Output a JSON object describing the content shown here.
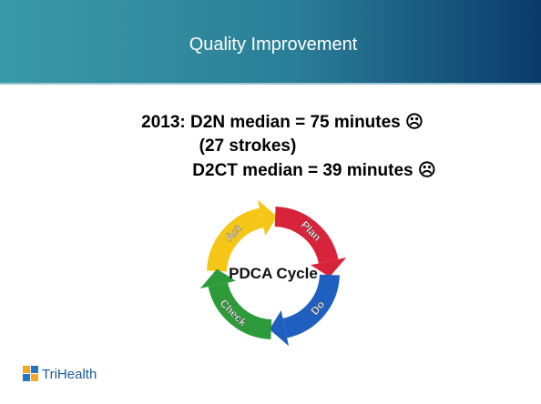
{
  "header": {
    "title": "Quality Improvement"
  },
  "body": {
    "lines": [
      "2013: D2N median = 75 minutes ☹",
      "(27 strokes)",
      "D2CT median = 39 minutes ☹"
    ]
  },
  "cycle": {
    "center": "PDCA Cycle",
    "steps": [
      "Act",
      "Plan",
      "Do",
      "Check"
    ]
  },
  "logo": {
    "text": "TriHealth"
  }
}
